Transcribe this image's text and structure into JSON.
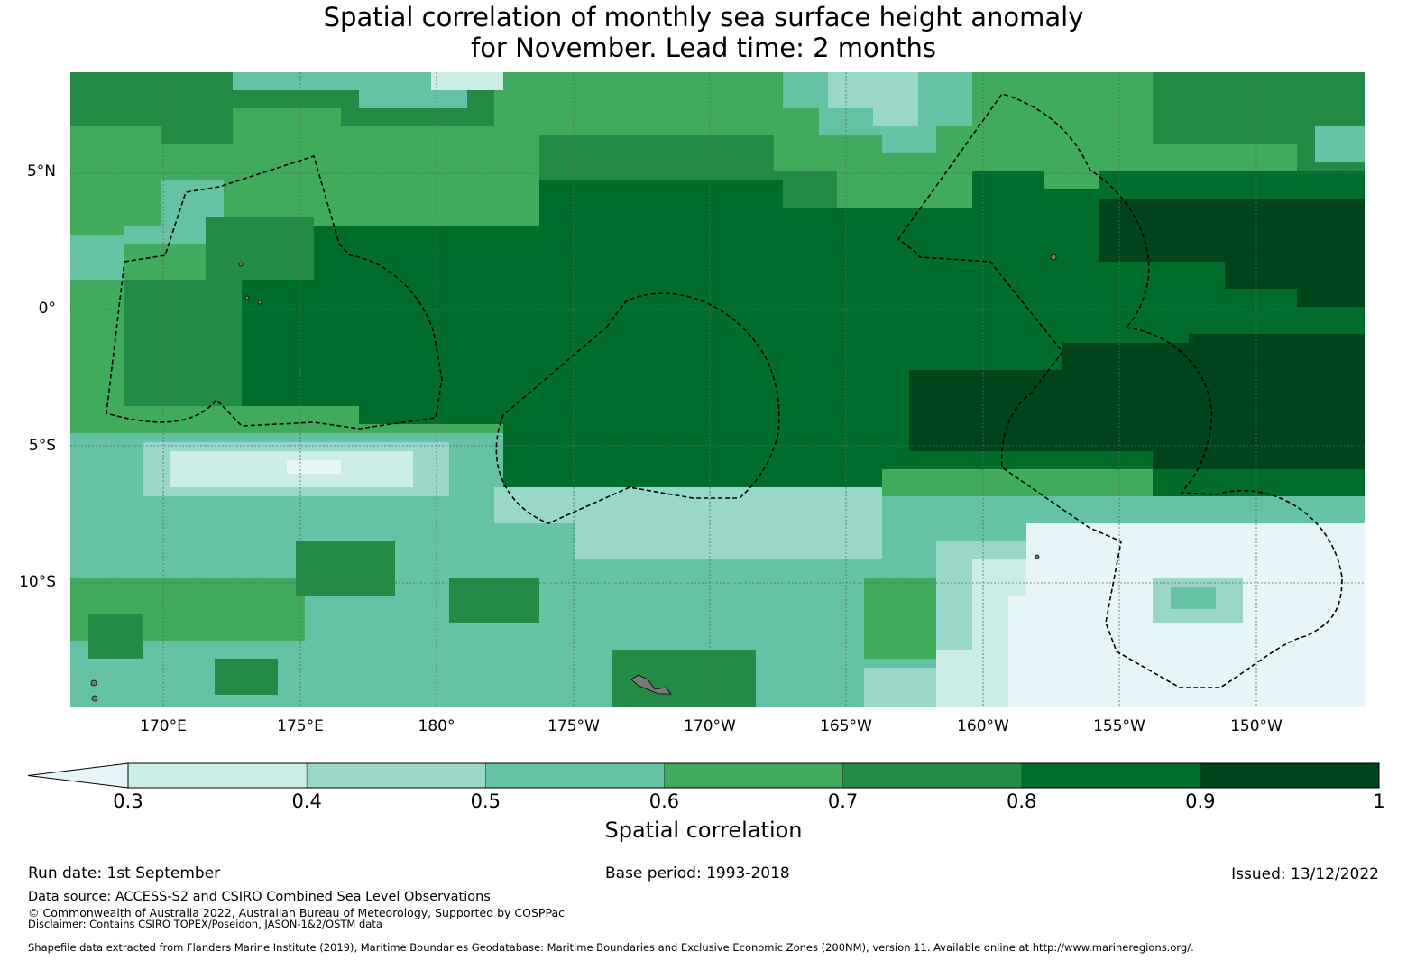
{
  "title_line1": "Spatial correlation of monthly sea surface height anomaly",
  "title_line2": "for November. Lead time: 2 months",
  "lat_labels": [
    "5°N",
    "0°",
    "5°S",
    "10°S"
  ],
  "lon_labels": [
    "170°E",
    "175°E",
    "180°",
    "175°W",
    "170°W",
    "165°W",
    "160°W",
    "155°W",
    "150°W"
  ],
  "colorbar": {
    "ticks": [
      "0.3",
      "0.4",
      "0.5",
      "0.6",
      "0.7",
      "0.8",
      "0.9",
      "1"
    ],
    "colors": [
      "#e7f4f8",
      "#ccece6",
      "#99d8c9",
      "#66c2a4",
      "#41ab5d",
      "#238b45",
      "#006d2c",
      "#00441b"
    ],
    "title": "Spatial correlation"
  },
  "run_date": "Run date: 1st September",
  "base_period": "Base period: 1993-2018",
  "issued": "Issued: 13/12/2022",
  "data_source": "Data source: ACCESS-S2 and CSIRO Combined Sea Level Observations",
  "copyright": "© Commonwealth of Australia 2022, Australian Bureau of Meteorology, Supported by COSPPac",
  "disclaimer": "Disclaimer: Contains CSIRO TOPEX/Poseidon, JASON-1&2/OSTM data",
  "shapefile_note": "Shapefile data extracted from Flanders Marine Institute (2019), Maritime Boundaries Geodatabase: Maritime Boundaries and Exclusive Economic Zones (200NM), version 11. Available online at http://www.marineregions.org/."
}
